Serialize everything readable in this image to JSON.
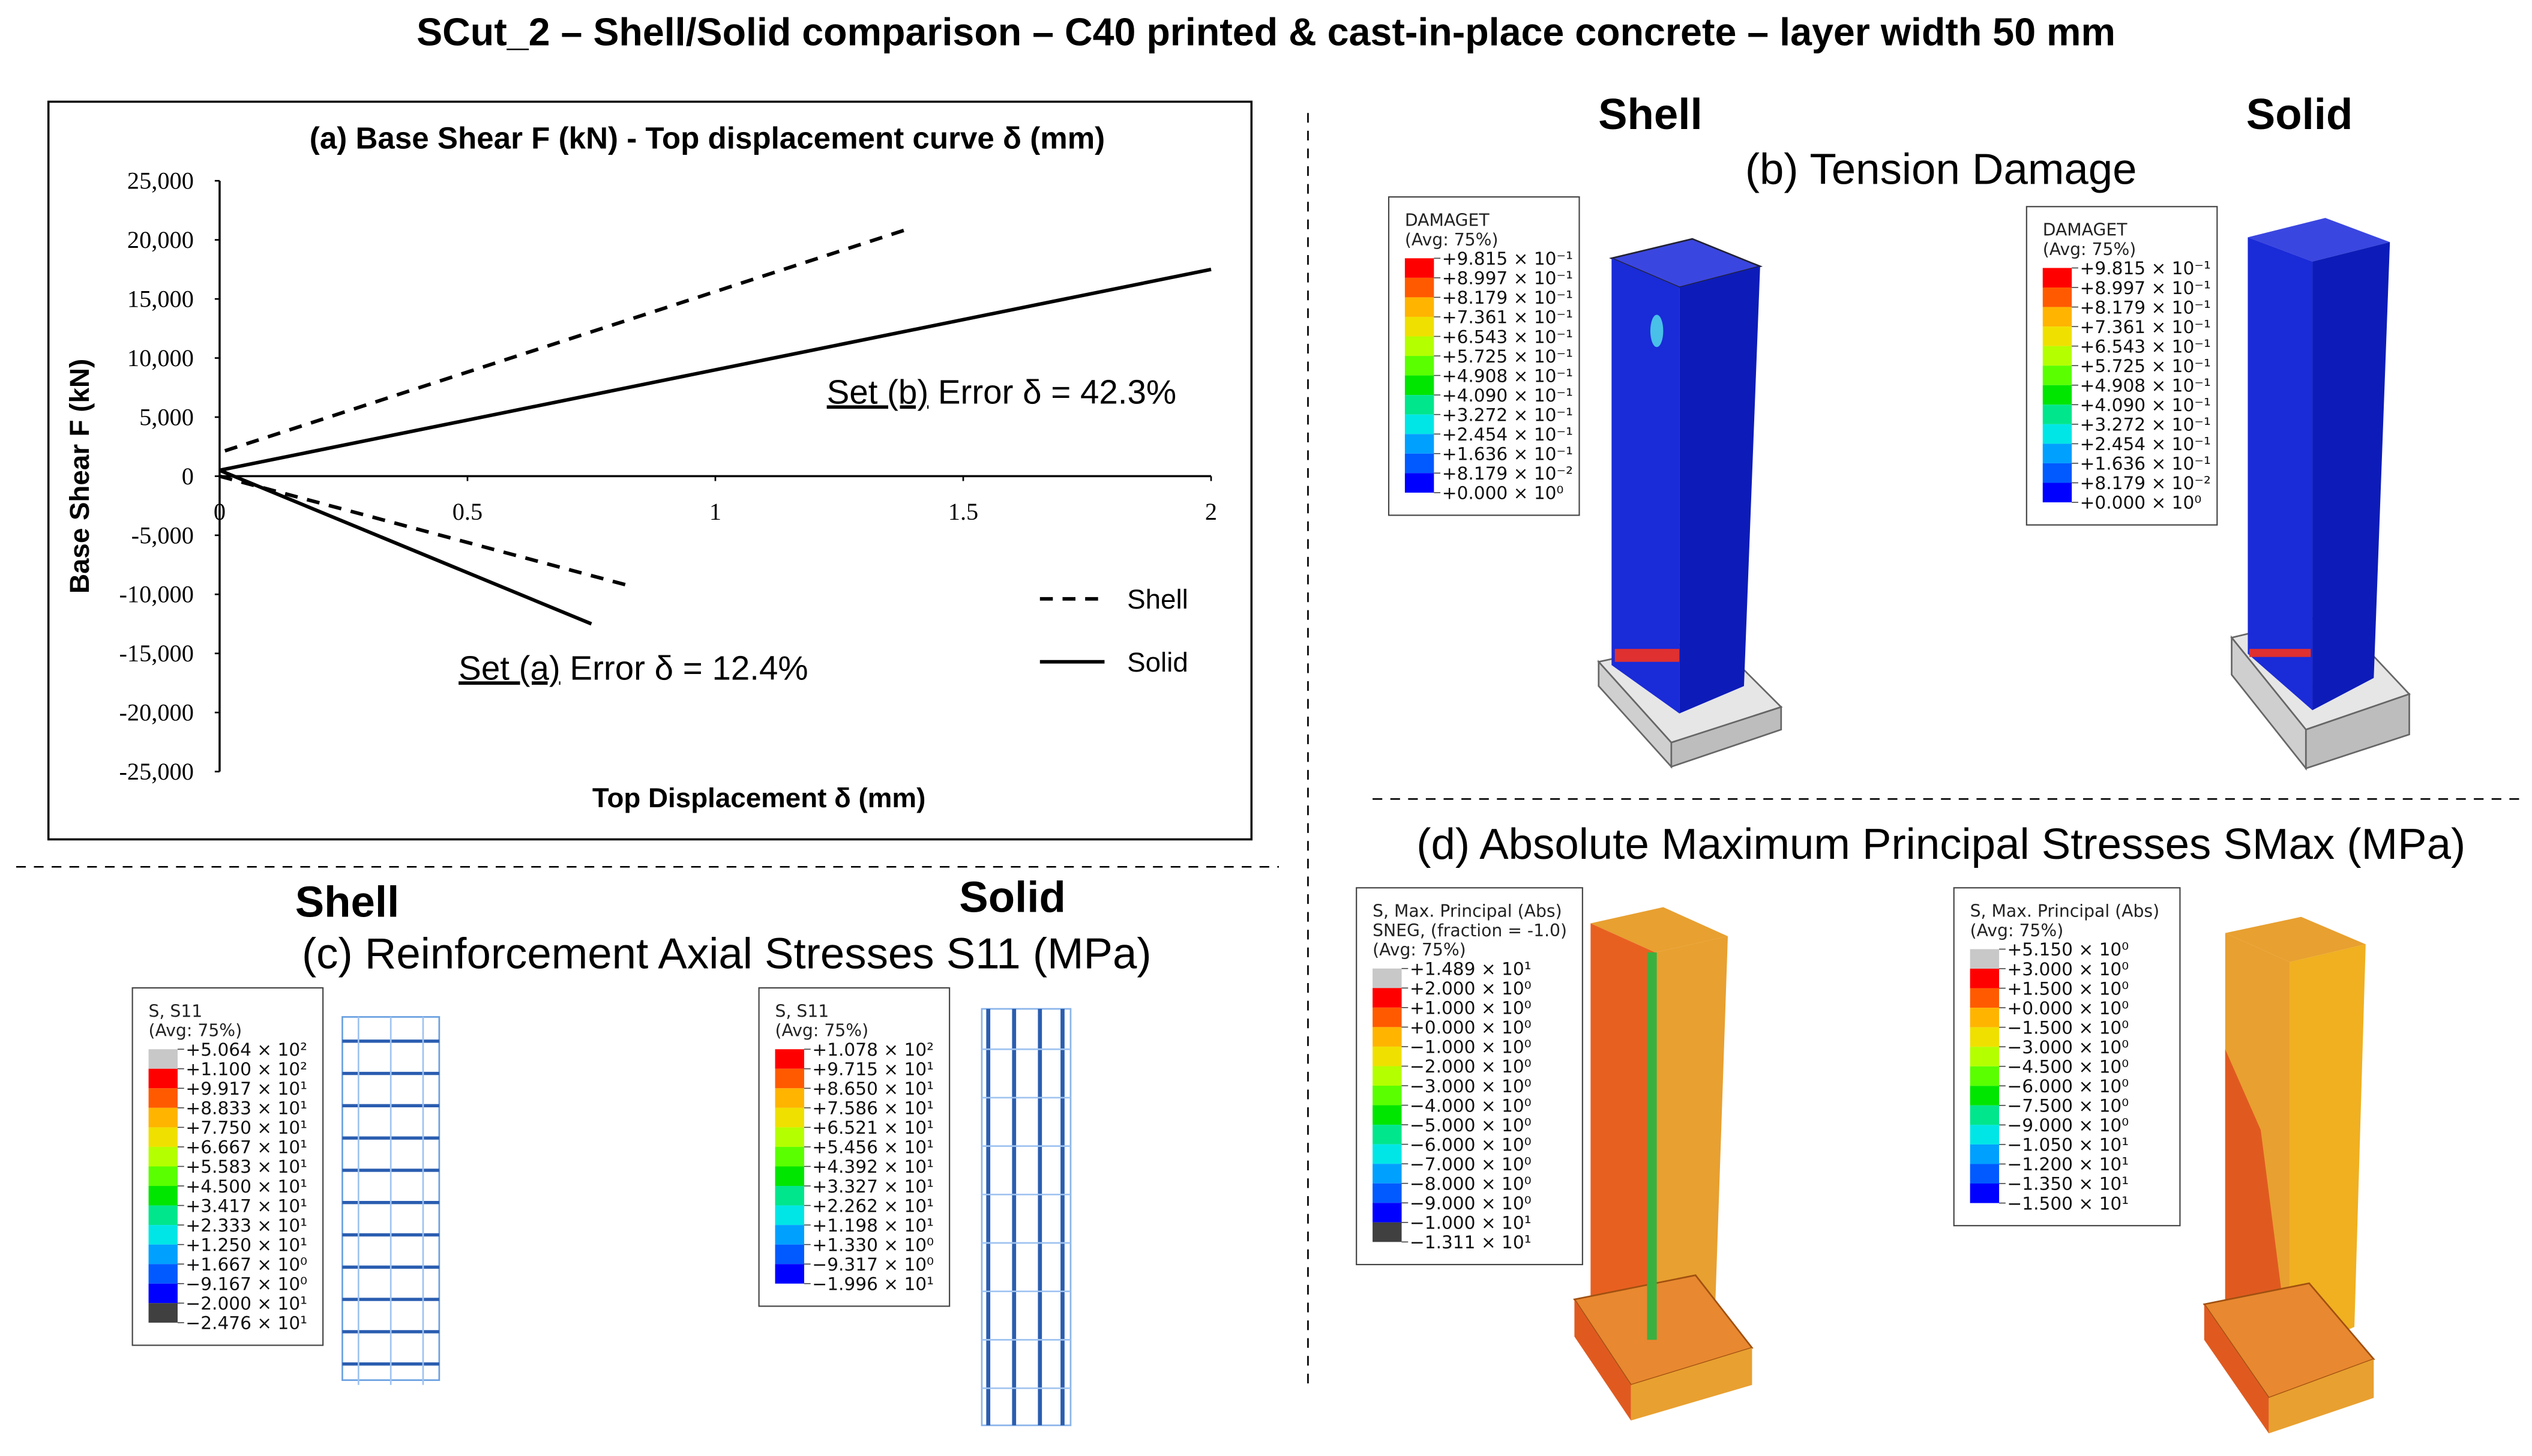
{
  "title": "SCut_2 – Shell/Solid comparison – C40 printed & cast-in-place concrete – layer width 50 mm",
  "chart_data": {
    "type": "line",
    "title": "(a) Base Shear F (kN)  - Top displacement curve δ (mm)",
    "x_label": "Top Displacement δ (mm)",
    "y_label": "Base Shear F (kN)",
    "xlim": [
      0,
      2
    ],
    "xticks": [
      0,
      0.5,
      1,
      1.5,
      2
    ],
    "ylim": [
      -25000,
      25000
    ],
    "yticks": [
      {
        "value": -25000,
        "label": "-25,000"
      },
      {
        "value": -20000,
        "label": "-20,000"
      },
      {
        "value": -15000,
        "label": "-15,000"
      },
      {
        "value": -10000,
        "label": "-10,000"
      },
      {
        "value": -5000,
        "label": "-5,000"
      },
      0,
      {
        "value": 5000,
        "label": "5,000"
      },
      {
        "value": 10000,
        "label": "10,000"
      },
      {
        "value": 15000,
        "label": "15,000"
      },
      {
        "value": 20000,
        "label": "20,000"
      },
      {
        "value": 25000,
        "label": "25,000"
      }
    ],
    "legend": "lower right",
    "series": [
      {
        "name": "Shell",
        "color": "#000000",
        "dash": true,
        "x": [
          1.38,
          0,
          null,
          0,
          0.82
        ],
        "values": [
          20800,
          2000,
          null,
          0,
          -9200
        ]
      },
      {
        "name": "Solid",
        "color": "#000000",
        "dash": false,
        "x": [
          2,
          0,
          null,
          0,
          0.75
        ],
        "values": [
          17500,
          500,
          null,
          500,
          -12500
        ]
      }
    ],
    "annotations": [
      {
        "underlined": "Set (b)",
        "text": " Error δ = 42.3%"
      },
      {
        "underlined": "Set (a)",
        "text": " Error δ = 12.4%"
      }
    ]
  },
  "panels": {
    "b": {
      "title": "(b) Tension Damage",
      "left": "Shell",
      "right": "Solid"
    },
    "c": {
      "title": "(c) Reinforcement Axial Stresses S11 (MPa)",
      "left": "Shell",
      "right": "Solid"
    },
    "d": {
      "title": "(d) Absolute Maximum Principal Stresses SMax (MPa)"
    }
  },
  "legends": [
    {
      "title": [
        "DAMAGET",
        "(Avg: 75%)"
      ],
      "labels": [
        "+9.815 × 10⁻¹",
        "+8.997 × 10⁻¹",
        "+8.179 × 10⁻¹",
        "+7.361 × 10⁻¹",
        "+6.543 × 10⁻¹",
        "+5.725 × 10⁻¹",
        "+4.908 × 10⁻¹",
        "+4.090 × 10⁻¹",
        "+3.272 × 10⁻¹",
        "+2.454 × 10⁻¹",
        "+1.636 × 10⁻¹",
        "+8.179 × 10⁻²",
        "+0.000 × 10⁰"
      ]
    },
    {
      "title": [
        "DAMAGET",
        "(Avg: 75%)"
      ],
      "labels": [
        "+9.815 × 10⁻¹",
        "+8.997 × 10⁻¹",
        "+8.179 × 10⁻¹",
        "+7.361 × 10⁻¹",
        "+6.543 × 10⁻¹",
        "+5.725 × 10⁻¹",
        "+4.908 × 10⁻¹",
        "+4.090 × 10⁻¹",
        "+3.272 × 10⁻¹",
        "+2.454 × 10⁻¹",
        "+1.636 × 10⁻¹",
        "+8.179 × 10⁻²",
        "+0.000 × 10⁰"
      ]
    },
    {
      "title": [
        "S, S11",
        "(Avg: 75%)"
      ],
      "over": "#c8c8c8",
      "under": "#404040",
      "labels": [
        "+5.064 × 10²",
        "+1.100 × 10²",
        "+9.917 × 10¹",
        "+8.833 × 10¹",
        "+7.750 × 10¹",
        "+6.667 × 10¹",
        "+5.583 × 10¹",
        "+4.500 × 10¹",
        "+3.417 × 10¹",
        "+2.333 × 10¹",
        "+1.250 × 10¹",
        "+1.667 × 10⁰",
        "−9.167 × 10⁰",
        "−2.000 × 10¹",
        "−2.476 × 10¹"
      ]
    },
    {
      "title": [
        "S, S11",
        "(Avg: 75%)"
      ],
      "labels": [
        "+1.078 × 10²",
        "+9.715 × 10¹",
        "+8.650 × 10¹",
        "+7.586 × 10¹",
        "+6.521 × 10¹",
        "+5.456 × 10¹",
        "+4.392 × 10¹",
        "+3.327 × 10¹",
        "+2.262 × 10¹",
        "+1.198 × 10¹",
        "+1.330 × 10⁰",
        "−9.317 × 10⁰",
        "−1.996 × 10¹"
      ]
    },
    {
      "title": [
        "S, Max. Principal (Abs)",
        "SNEG, (fraction = -1.0)",
        "(Avg: 75%)"
      ],
      "over": "#c8c8c8",
      "under": "#404040",
      "labels": [
        "+1.489 × 10¹",
        "+2.000 × 10⁰",
        "+1.000 × 10⁰",
        "+0.000 × 10⁰",
        "−1.000 × 10⁰",
        "−2.000 × 10⁰",
        "−3.000 × 10⁰",
        "−4.000 × 10⁰",
        "−5.000 × 10⁰",
        "−6.000 × 10⁰",
        "−7.000 × 10⁰",
        "−8.000 × 10⁰",
        "−9.000 × 10⁰",
        "−1.000 × 10¹",
        "−1.311 × 10¹"
      ]
    },
    {
      "title": [
        "S, Max. Principal (Abs)",
        "(Avg: 75%)"
      ],
      "over": "#c8c8c8",
      "labels": [
        "+5.150 × 10⁰",
        "+3.000 × 10⁰",
        "+1.500 × 10⁰",
        "+0.000 × 10⁰",
        "−1.500 × 10⁰",
        "−3.000 × 10⁰",
        "−4.500 × 10⁰",
        "−6.000 × 10⁰",
        "−7.500 × 10⁰",
        "−9.000 × 10⁰",
        "−1.050 × 10¹",
        "−1.200 × 10¹",
        "−1.350 × 10¹",
        "−1.500 × 10¹"
      ]
    }
  ]
}
